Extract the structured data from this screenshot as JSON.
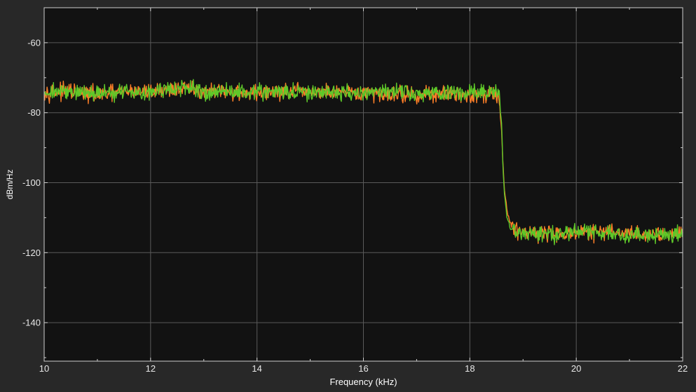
{
  "chart_data": {
    "type": "line",
    "title": "",
    "xlabel": "Frequency (kHz)",
    "ylabel": "dBm/Hz",
    "xlim": [
      10,
      22
    ],
    "ylim": [
      -151,
      -50
    ],
    "xticks": [
      10,
      12,
      14,
      16,
      18,
      20,
      22
    ],
    "yticks": [
      -60,
      -80,
      -100,
      -120,
      -140
    ],
    "grid": true,
    "legend": "none",
    "colors": {
      "background": "#282828",
      "plot_area": "#121212",
      "grid": "#5a5a5a",
      "axes": "#cfcfcf",
      "tick_text": "#e8e8e8"
    },
    "series": [
      {
        "color": "#ff7f27",
        "x": [
          10.0,
          10.5,
          11.0,
          11.5,
          12.0,
          12.5,
          13.0,
          13.5,
          14.0,
          14.5,
          15.0,
          15.5,
          16.0,
          16.5,
          17.0,
          17.5,
          18.0,
          18.4,
          18.55,
          18.6,
          18.62,
          18.65,
          18.7,
          18.75,
          18.8,
          19.0,
          19.5,
          20.0,
          20.5,
          21.0,
          21.5,
          22.0
        ],
        "values": [
          -74,
          -74,
          -75,
          -74,
          -74,
          -73,
          -74,
          -74,
          -74.5,
          -74,
          -74,
          -74.5,
          -74.5,
          -74.5,
          -75,
          -74.5,
          -75,
          -74.5,
          -75,
          -86,
          -94,
          -102,
          -108,
          -111,
          -113,
          -114,
          -114.5,
          -114.5,
          -114,
          -114.5,
          -115,
          -114
        ]
      },
      {
        "color": "#5ec829",
        "x": [
          10.0,
          10.5,
          11.0,
          11.5,
          12.0,
          12.5,
          13.0,
          13.5,
          14.0,
          14.5,
          15.0,
          15.5,
          16.0,
          16.5,
          17.0,
          17.5,
          18.0,
          18.4,
          18.55,
          18.6,
          18.62,
          18.65,
          18.7,
          18.75,
          18.8,
          19.0,
          19.5,
          20.0,
          20.5,
          21.0,
          21.5,
          22.0
        ],
        "values": [
          -74,
          -74,
          -74.5,
          -74,
          -74,
          -73,
          -74,
          -74,
          -74,
          -74,
          -74.5,
          -74,
          -74.5,
          -74,
          -74.5,
          -74.5,
          -74.5,
          -74,
          -74.5,
          -84,
          -95,
          -103,
          -110,
          -113,
          -114,
          -114.5,
          -114.5,
          -114,
          -114.5,
          -115,
          -115,
          -114.5
        ]
      }
    ]
  }
}
